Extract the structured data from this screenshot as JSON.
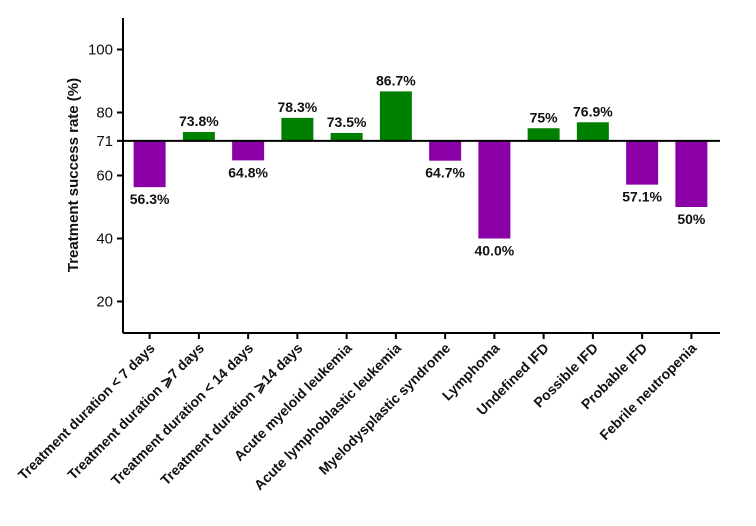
{
  "chart_data": {
    "type": "bar",
    "ylabel": "Treatment success rate (%)",
    "ylim": [
      10,
      110
    ],
    "yticks": [
      20,
      40,
      60,
      71,
      80,
      100
    ],
    "baseline": 71,
    "grid": false,
    "legend": "none",
    "colors": {
      "above": "#008000",
      "below": "#8B00A6"
    },
    "categories": [
      "Treatment duration < 7 days",
      "Treatment duration ⩾7 days",
      "Treatment duration < 14 days",
      "Treatment duration ⩾14 days",
      "Acute myeloid leukemia",
      "Acute lymphoblastic leukemia",
      "Myelodysplastic syndrome",
      "Lymphoma",
      "Undefined IFD",
      "Possible IFD",
      "Probable IFD",
      "Febrile neutropenia"
    ],
    "values": [
      56.3,
      73.8,
      64.8,
      78.3,
      73.5,
      86.7,
      64.7,
      40.0,
      75,
      76.9,
      57.1,
      50
    ],
    "data_labels": [
      "56.3%",
      "73.8%",
      "64.8%",
      "78.3%",
      "73.5%",
      "86.7%",
      "64.7%",
      "40.0%",
      "75%",
      "76.9%",
      "57.1%",
      "50%"
    ]
  }
}
